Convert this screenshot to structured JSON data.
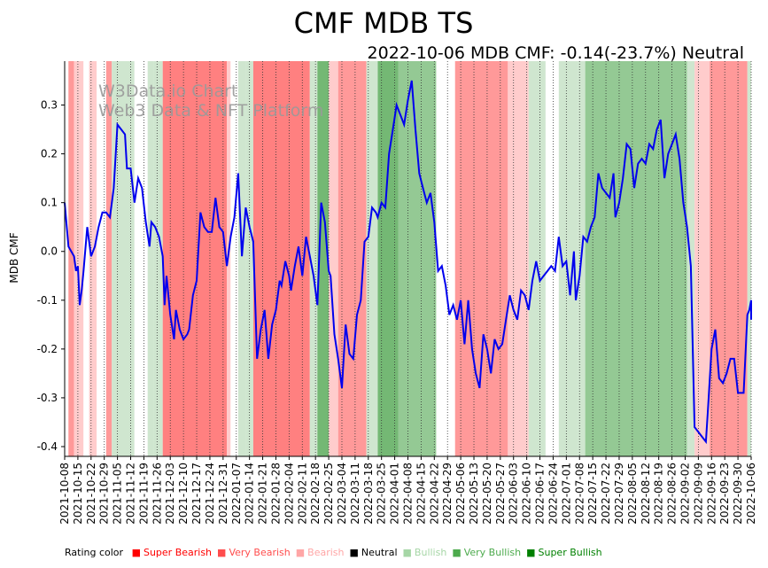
{
  "chart_data": {
    "type": "line",
    "title": "CMF MDB TS",
    "subtitle": "2022-10-06 MDB CMF: -0.14(-23.7%) Neutral",
    "watermark": [
      "W3Data.io Chart",
      "Web3 Data & NFT Platform"
    ],
    "ylabel": "MDB CMF",
    "xlabel": "",
    "ylim": [
      -0.42,
      0.39
    ],
    "yticks": [
      0.3,
      0.2,
      0.1,
      0.0,
      -0.1,
      -0.2,
      -0.3,
      -0.4
    ],
    "xrange": [
      0,
      364
    ],
    "xtick_labels": [
      "2021-10-08",
      "2021-10-15",
      "2021-10-22",
      "2021-10-29",
      "2021-11-05",
      "2021-11-12",
      "2021-11-19",
      "2021-11-26",
      "2021-12-03",
      "2021-12-10",
      "2021-12-17",
      "2021-12-24",
      "2021-12-31",
      "2022-01-07",
      "2022-01-14",
      "2022-01-21",
      "2022-01-28",
      "2022-02-04",
      "2022-02-11",
      "2022-02-18",
      "2022-02-25",
      "2022-03-04",
      "2022-03-11",
      "2022-03-18",
      "2022-03-25",
      "2022-04-01",
      "2022-04-08",
      "2022-04-15",
      "2022-04-22",
      "2022-04-29",
      "2022-05-06",
      "2022-05-13",
      "2022-05-20",
      "2022-05-27",
      "2022-06-03",
      "2022-06-10",
      "2022-06-17",
      "2022-06-24",
      "2022-07-01",
      "2022-07-08",
      "2022-07-15",
      "2022-07-22",
      "2022-07-29",
      "2022-08-05",
      "2022-08-12",
      "2022-08-19",
      "2022-08-26",
      "2022-09-02",
      "2022-09-09",
      "2022-09-16",
      "2022-09-23",
      "2022-09-30",
      "2022-10-06"
    ],
    "series": [
      {
        "name": "MDB CMF",
        "color": "#0000ee",
        "points": [
          [
            0,
            0.1
          ],
          [
            2,
            0.01
          ],
          [
            5,
            -0.01
          ],
          [
            6,
            -0.04
          ],
          [
            7,
            -0.03
          ],
          [
            8,
            -0.11
          ],
          [
            9,
            -0.08
          ],
          [
            10,
            -0.04
          ],
          [
            12,
            0.05
          ],
          [
            14,
            -0.01
          ],
          [
            16,
            0.01
          ],
          [
            18,
            0.05
          ],
          [
            20,
            0.08
          ],
          [
            22,
            0.08
          ],
          [
            24,
            0.07
          ],
          [
            26,
            0.13
          ],
          [
            28,
            0.26
          ],
          [
            32,
            0.24
          ],
          [
            33,
            0.17
          ],
          [
            35,
            0.17
          ],
          [
            37,
            0.1
          ],
          [
            39,
            0.15
          ],
          [
            41,
            0.13
          ],
          [
            43,
            0.06
          ],
          [
            45,
            0.01
          ],
          [
            46,
            0.06
          ],
          [
            48,
            0.05
          ],
          [
            50,
            0.03
          ],
          [
            52,
            -0.01
          ],
          [
            53,
            -0.11
          ],
          [
            54,
            -0.05
          ],
          [
            56,
            -0.13
          ],
          [
            58,
            -0.18
          ],
          [
            59,
            -0.12
          ],
          [
            61,
            -0.16
          ],
          [
            63,
            -0.18
          ],
          [
            65,
            -0.17
          ],
          [
            66,
            -0.16
          ],
          [
            68,
            -0.09
          ],
          [
            70,
            -0.06
          ],
          [
            72,
            0.08
          ],
          [
            74,
            0.05
          ],
          [
            76,
            0.04
          ],
          [
            78,
            0.04
          ],
          [
            80,
            0.11
          ],
          [
            82,
            0.05
          ],
          [
            84,
            0.04
          ],
          [
            86,
            -0.03
          ],
          [
            88,
            0.03
          ],
          [
            90,
            0.07
          ],
          [
            92,
            0.16
          ],
          [
            94,
            -0.01
          ],
          [
            96,
            0.09
          ],
          [
            98,
            0.05
          ],
          [
            100,
            0.02
          ],
          [
            102,
            -0.22
          ],
          [
            104,
            -0.16
          ],
          [
            106,
            -0.12
          ],
          [
            108,
            -0.22
          ],
          [
            110,
            -0.15
          ],
          [
            112,
            -0.12
          ],
          [
            114,
            -0.06
          ],
          [
            115,
            -0.07
          ],
          [
            117,
            -0.02
          ],
          [
            119,
            -0.05
          ],
          [
            120,
            -0.08
          ],
          [
            122,
            -0.03
          ],
          [
            124,
            0.01
          ],
          [
            126,
            -0.05
          ],
          [
            128,
            0.03
          ],
          [
            130,
            -0.01
          ],
          [
            132,
            -0.05
          ],
          [
            134,
            -0.11
          ],
          [
            136,
            0.1
          ],
          [
            138,
            0.06
          ],
          [
            140,
            -0.04
          ],
          [
            141,
            -0.05
          ],
          [
            143,
            -0.17
          ],
          [
            145,
            -0.22
          ],
          [
            147,
            -0.28
          ],
          [
            149,
            -0.15
          ],
          [
            151,
            -0.21
          ],
          [
            153,
            -0.22
          ],
          [
            155,
            -0.13
          ],
          [
            157,
            -0.1
          ],
          [
            159,
            0.02
          ],
          [
            161,
            0.03
          ],
          [
            163,
            0.09
          ],
          [
            165,
            0.08
          ],
          [
            166,
            0.07
          ],
          [
            168,
            0.1
          ],
          [
            170,
            0.09
          ],
          [
            172,
            0.2
          ],
          [
            174,
            0.25
          ],
          [
            176,
            0.3
          ],
          [
            178,
            0.28
          ],
          [
            180,
            0.26
          ],
          [
            182,
            0.31
          ],
          [
            184,
            0.35
          ],
          [
            186,
            0.25
          ],
          [
            188,
            0.16
          ],
          [
            190,
            0.13
          ],
          [
            192,
            0.1
          ],
          [
            194,
            0.12
          ],
          [
            196,
            0.06
          ],
          [
            198,
            -0.04
          ],
          [
            200,
            -0.03
          ],
          [
            202,
            -0.07
          ],
          [
            204,
            -0.13
          ],
          [
            206,
            -0.11
          ],
          [
            208,
            -0.14
          ],
          [
            210,
            -0.1
          ],
          [
            212,
            -0.19
          ],
          [
            214,
            -0.1
          ],
          [
            216,
            -0.2
          ],
          [
            218,
            -0.25
          ],
          [
            220,
            -0.28
          ],
          [
            222,
            -0.17
          ],
          [
            224,
            -0.2
          ],
          [
            226,
            -0.25
          ],
          [
            228,
            -0.18
          ],
          [
            230,
            -0.2
          ],
          [
            232,
            -0.19
          ],
          [
            234,
            -0.14
          ],
          [
            236,
            -0.09
          ],
          [
            238,
            -0.12
          ],
          [
            240,
            -0.14
          ],
          [
            242,
            -0.08
          ],
          [
            244,
            -0.09
          ],
          [
            246,
            -0.12
          ],
          [
            248,
            -0.06
          ],
          [
            250,
            -0.02
          ],
          [
            252,
            -0.06
          ],
          [
            254,
            -0.05
          ],
          [
            256,
            -0.04
          ],
          [
            258,
            -0.03
          ],
          [
            260,
            -0.04
          ],
          [
            262,
            0.03
          ],
          [
            264,
            -0.03
          ],
          [
            266,
            -0.02
          ],
          [
            268,
            -0.09
          ],
          [
            270,
            0.0
          ],
          [
            271,
            -0.1
          ],
          [
            273,
            -0.05
          ],
          [
            275,
            0.03
          ],
          [
            277,
            0.02
          ],
          [
            279,
            0.05
          ],
          [
            281,
            0.07
          ],
          [
            283,
            0.16
          ],
          [
            285,
            0.13
          ],
          [
            287,
            0.12
          ],
          [
            289,
            0.11
          ],
          [
            291,
            0.16
          ],
          [
            292,
            0.07
          ],
          [
            294,
            0.1
          ],
          [
            296,
            0.15
          ],
          [
            298,
            0.22
          ],
          [
            300,
            0.21
          ],
          [
            302,
            0.13
          ],
          [
            304,
            0.18
          ],
          [
            306,
            0.19
          ],
          [
            308,
            0.18
          ],
          [
            310,
            0.22
          ],
          [
            312,
            0.21
          ],
          [
            314,
            0.25
          ],
          [
            316,
            0.27
          ],
          [
            318,
            0.15
          ],
          [
            320,
            0.2
          ],
          [
            322,
            0.22
          ],
          [
            324,
            0.24
          ],
          [
            326,
            0.19
          ],
          [
            328,
            0.1
          ],
          [
            330,
            0.05
          ],
          [
            332,
            -0.03
          ],
          [
            334,
            -0.36
          ],
          [
            336,
            -0.37
          ],
          [
            338,
            -0.38
          ],
          [
            340,
            -0.39
          ],
          [
            341,
            -0.33
          ],
          [
            343,
            -0.2
          ],
          [
            345,
            -0.16
          ],
          [
            347,
            -0.26
          ],
          [
            349,
            -0.27
          ],
          [
            351,
            -0.25
          ],
          [
            353,
            -0.22
          ],
          [
            355,
            -0.22
          ],
          [
            357,
            -0.29
          ],
          [
            360,
            -0.29
          ],
          [
            362,
            -0.13
          ],
          [
            363,
            -0.12
          ],
          [
            364,
            -0.1
          ],
          [
            365,
            -0.11
          ],
          [
            366,
            -0.14
          ]
        ]
      }
    ],
    "bands": [
      [
        2,
        5,
        "very-bearish"
      ],
      [
        5,
        10,
        "bearish"
      ],
      [
        10,
        13,
        "neutral"
      ],
      [
        13,
        17,
        "bearish"
      ],
      [
        17,
        22,
        "neutral"
      ],
      [
        22,
        25,
        "very-bearish"
      ],
      [
        25,
        37,
        "bullish"
      ],
      [
        37,
        44,
        "neutral"
      ],
      [
        44,
        47,
        "bullish"
      ],
      [
        47,
        52,
        "bullish"
      ],
      [
        52,
        86,
        "super-bearish"
      ],
      [
        86,
        88,
        "bearish"
      ],
      [
        88,
        92,
        "neutral"
      ],
      [
        92,
        96,
        "bullish"
      ],
      [
        96,
        100,
        "bullish"
      ],
      [
        100,
        130,
        "super-bearish"
      ],
      [
        130,
        134,
        "bullish"
      ],
      [
        134,
        140,
        "super-bullish"
      ],
      [
        140,
        145,
        "bearish"
      ],
      [
        145,
        160,
        "very-bearish"
      ],
      [
        160,
        166,
        "bullish"
      ],
      [
        166,
        177,
        "super-bullish"
      ],
      [
        177,
        197,
        "very-bullish"
      ],
      [
        197,
        207,
        "neutral"
      ],
      [
        207,
        235,
        "very-bearish"
      ],
      [
        235,
        246,
        "bearish"
      ],
      [
        246,
        255,
        "bullish"
      ],
      [
        255,
        262,
        "neutral"
      ],
      [
        262,
        272,
        "bullish"
      ],
      [
        272,
        276,
        "bullish"
      ],
      [
        276,
        330,
        "very-bullish"
      ],
      [
        330,
        334,
        "bullish"
      ],
      [
        334,
        342,
        "bearish"
      ],
      [
        342,
        362,
        "very-bearish"
      ],
      [
        362,
        366,
        "bullish"
      ]
    ],
    "band_colors": {
      "super-bearish": "#ff8080",
      "very-bearish": "#ff9999",
      "bearish": "#ffcccc",
      "neutral": "#ffffff",
      "bullish": "#cfe6cf",
      "very-bullish": "#94c994",
      "super-bullish": "#74b874"
    },
    "legend": {
      "title": "Rating color",
      "items": [
        {
          "label": "Super Bearish",
          "color": "#ff0000"
        },
        {
          "label": "Very Bearish",
          "color": "#ff4d4d"
        },
        {
          "label": "Bearish",
          "color": "#ffa6a6"
        },
        {
          "label": "Neutral",
          "color": "#000000"
        },
        {
          "label": "Bullish",
          "color": "#a6d6a6"
        },
        {
          "label": "Very Bullish",
          "color": "#4daa4d"
        },
        {
          "label": "Super Bullish",
          "color": "#008000"
        }
      ]
    }
  }
}
